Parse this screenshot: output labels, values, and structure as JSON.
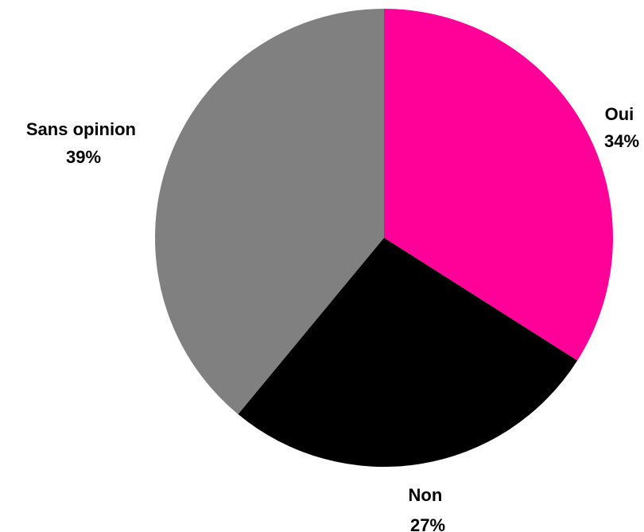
{
  "chart_data": {
    "type": "pie",
    "slices": [
      {
        "label": "Oui",
        "percent_label": "34%",
        "value": 34,
        "color": "#ff0099"
      },
      {
        "label": "Non",
        "percent_label": "27%",
        "value": 27,
        "color": "#000000"
      },
      {
        "label": "Sans opinion",
        "percent_label": "39%",
        "value": 39,
        "color": "#808080"
      }
    ],
    "start": "12 o'clock",
    "direction": "clockwise"
  }
}
